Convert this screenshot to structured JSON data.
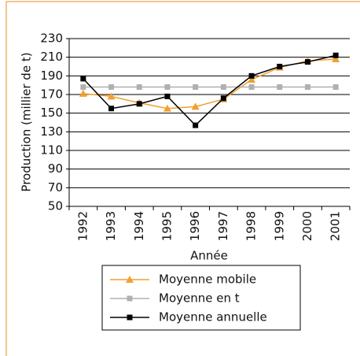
{
  "chart_data": {
    "type": "line",
    "x_label": "Année",
    "y_label": "Production (millier de t)",
    "categories": [
      "1992",
      "1993",
      "1994",
      "1995",
      "1996",
      "1997",
      "1998",
      "1999",
      "2000",
      "2001"
    ],
    "series": [
      {
        "name": "Moyenne mobile",
        "color": "#f0a030",
        "marker": "triangle",
        "values": [
          171,
          168,
          161,
          155,
          157,
          165,
          186,
          199,
          206,
          208
        ]
      },
      {
        "name": "Moyenne en t",
        "color": "#b0b0b0",
        "marker": "square",
        "values": [
          178,
          178,
          178,
          178,
          178,
          178,
          178,
          178,
          178,
          178
        ]
      },
      {
        "name": "Moyenne annuelle",
        "color": "#000000",
        "marker": "square",
        "values": [
          187,
          155,
          160,
          168,
          137,
          166,
          190,
          200,
          205,
          212
        ]
      }
    ],
    "ylim": [
      50,
      230
    ],
    "yticks": [
      50,
      70,
      90,
      110,
      130,
      150,
      170,
      190,
      210,
      230
    ],
    "grid": true
  }
}
